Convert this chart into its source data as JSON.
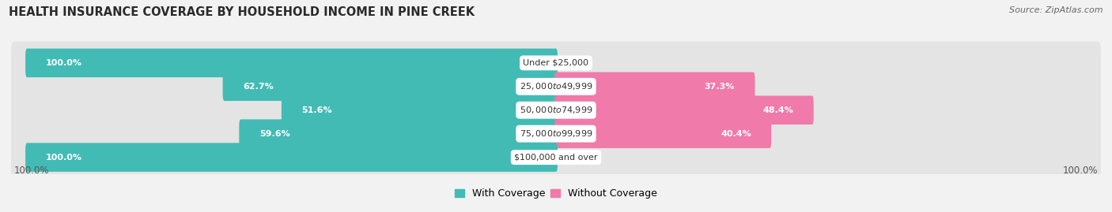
{
  "title": "HEALTH INSURANCE COVERAGE BY HOUSEHOLD INCOME IN PINE CREEK",
  "source": "Source: ZipAtlas.com",
  "categories": [
    "Under $25,000",
    "$25,000 to $49,999",
    "$50,000 to $74,999",
    "$75,000 to $99,999",
    "$100,000 and over"
  ],
  "with_coverage": [
    100.0,
    62.7,
    51.6,
    59.6,
    100.0
  ],
  "without_coverage": [
    0.0,
    37.3,
    48.4,
    40.4,
    0.0
  ],
  "color_with": "#42bbb5",
  "color_without": "#f07aaa",
  "color_without_light": "#f5bcd4",
  "color_with_light": "#9dd8d6",
  "bg_color": "#f2f2f2",
  "row_bg": "#e4e4e4",
  "title_fontsize": 10.5,
  "source_fontsize": 8,
  "label_fontsize": 8,
  "tick_fontsize": 8.5,
  "legend_fontsize": 9
}
